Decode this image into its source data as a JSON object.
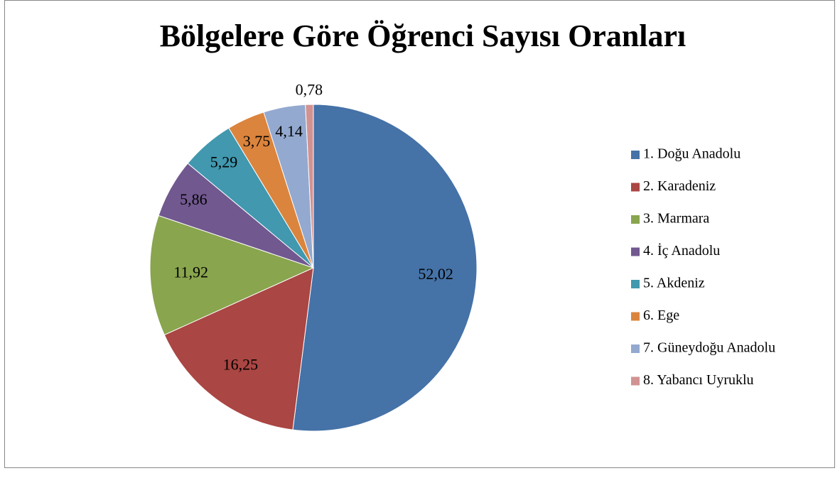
{
  "chart_data": {
    "type": "pie",
    "title": "Bölgelere Göre Öğrenci Sayısı Oranları",
    "categories": [
      "1. Doğu Anadolu",
      "2. Karadeniz",
      "3. Marmara",
      "4. İç Anadolu",
      "5. Akdeniz",
      "6. Ege",
      "7. Güneydoğu Anadolu",
      "8. Yabancı Uyruklu"
    ],
    "values": [
      52.02,
      16.25,
      11.92,
      5.86,
      5.29,
      3.75,
      4.14,
      0.78
    ],
    "value_labels": [
      "52,02",
      "16,25",
      "11,92",
      "5,86",
      "5,29",
      "3,75",
      "4,14",
      "0,78"
    ],
    "colors": [
      "#4572a7",
      "#aa4643",
      "#89a54e",
      "#71588f",
      "#4198af",
      "#db843d",
      "#93a9cf",
      "#d19392"
    ],
    "legend": "right"
  }
}
